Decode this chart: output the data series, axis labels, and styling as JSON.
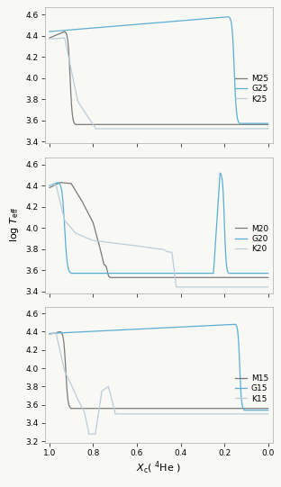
{
  "color_M": "#7a7a7a",
  "color_G": "#5bafd6",
  "color_K": "#bccdd8",
  "bg": "#f8f8f5",
  "lw": 0.9,
  "panels": [
    {
      "legend_labels": [
        "M25",
        "G25",
        "K25"
      ],
      "ylim": [
        3.38,
        4.67
      ],
      "yticks": [
        3.4,
        3.6,
        3.8,
        4.0,
        4.2,
        4.4,
        4.6
      ]
    },
    {
      "legend_labels": [
        "M20",
        "G20",
        "K20"
      ],
      "ylim": [
        3.38,
        4.67
      ],
      "yticks": [
        3.4,
        3.6,
        3.8,
        4.0,
        4.2,
        4.4,
        4.6
      ]
    },
    {
      "legend_labels": [
        "M15",
        "G15",
        "K15"
      ],
      "ylim": [
        3.18,
        4.67
      ],
      "yticks": [
        3.2,
        3.4,
        3.6,
        3.8,
        4.0,
        4.2,
        4.4,
        4.6
      ]
    }
  ]
}
